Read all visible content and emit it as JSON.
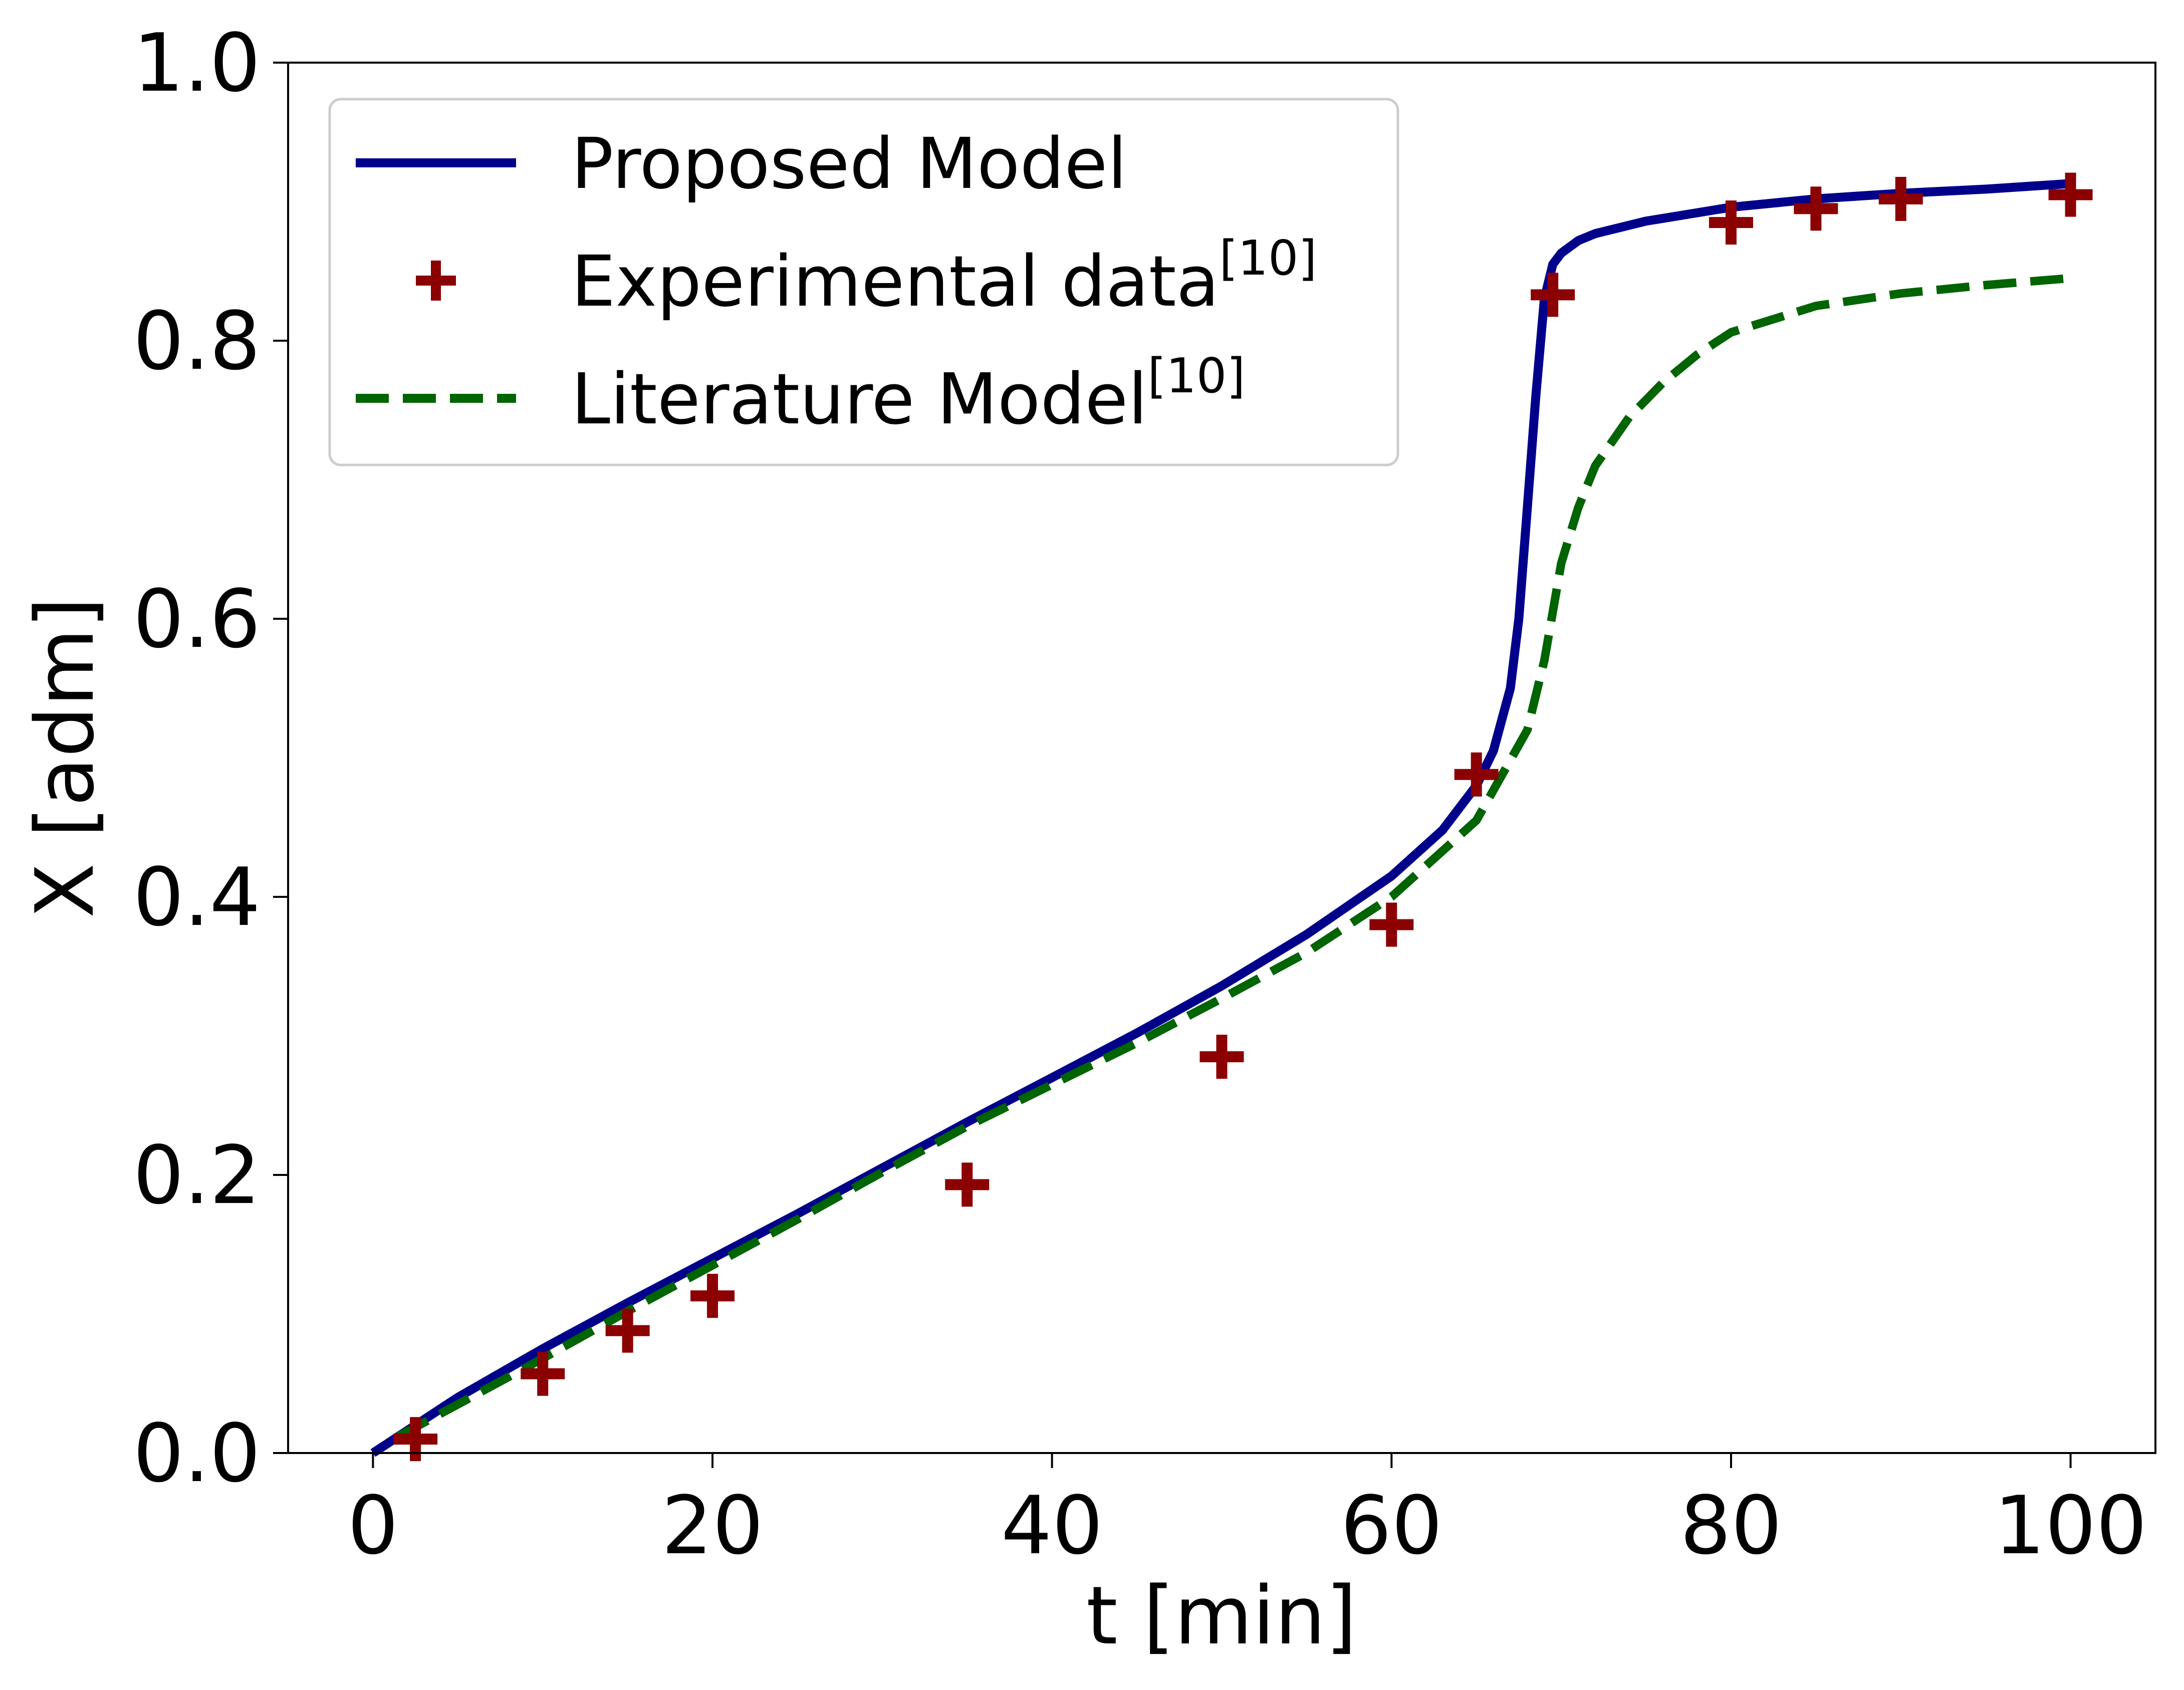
{
  "chart_data": {
    "type": "line",
    "xlabel": "t [min]",
    "ylabel": "X [adm]",
    "xlim": [
      -5,
      105
    ],
    "ylim": [
      0.0,
      1.0
    ],
    "xticks": [
      0,
      20,
      40,
      60,
      80,
      100
    ],
    "xtick_labels": [
      "0",
      "20",
      "40",
      "60",
      "80",
      "100"
    ],
    "yticks": [
      0.0,
      0.2,
      0.4,
      0.6,
      0.8,
      1.0
    ],
    "ytick_labels": [
      "0.0",
      "0.2",
      "0.4",
      "0.6",
      "0.8",
      "1.0"
    ],
    "grid": false,
    "legend_position": "top-left",
    "series": [
      {
        "name": "Proposed Model",
        "name_sup": "",
        "style": "solid",
        "color": "#00008B",
        "x": [
          0,
          5,
          10,
          15,
          20,
          25,
          30,
          35,
          40,
          45,
          50,
          55,
          60,
          63,
          65,
          66,
          67,
          67.5,
          68,
          68.5,
          69,
          69.5,
          70,
          71,
          72,
          75,
          80,
          85,
          90,
          95,
          100
        ],
        "y": [
          0.0,
          0.04,
          0.075,
          0.108,
          0.14,
          0.172,
          0.205,
          0.238,
          0.27,
          0.302,
          0.336,
          0.373,
          0.415,
          0.448,
          0.48,
          0.505,
          0.55,
          0.6,
          0.68,
          0.76,
          0.83,
          0.855,
          0.863,
          0.872,
          0.877,
          0.886,
          0.896,
          0.902,
          0.906,
          0.909,
          0.913
        ]
      },
      {
        "name": "Experimental data",
        "name_sup": "[10]",
        "style": "markers",
        "color": "#8B0000",
        "x": [
          2.5,
          10,
          15,
          20,
          35,
          50,
          60,
          65,
          69.5,
          80,
          85,
          90,
          100
        ],
        "y": [
          0.01,
          0.057,
          0.088,
          0.113,
          0.193,
          0.285,
          0.38,
          0.488,
          0.833,
          0.885,
          0.895,
          0.902,
          0.905
        ]
      },
      {
        "name": "Literature Model",
        "name_sup": "[10]",
        "style": "dashed",
        "color": "#006400",
        "x": [
          1.5,
          5,
          10,
          15,
          20,
          25,
          30,
          35,
          40,
          45,
          50,
          55,
          60,
          65,
          68,
          69,
          70,
          71,
          72,
          74,
          76,
          78,
          80,
          85,
          90,
          95,
          100
        ],
        "y": [
          0.012,
          0.035,
          0.068,
          0.102,
          0.135,
          0.168,
          0.202,
          0.235,
          0.265,
          0.295,
          0.327,
          0.36,
          0.4,
          0.455,
          0.52,
          0.57,
          0.64,
          0.68,
          0.71,
          0.745,
          0.77,
          0.79,
          0.806,
          0.825,
          0.834,
          0.84,
          0.845
        ]
      }
    ]
  }
}
